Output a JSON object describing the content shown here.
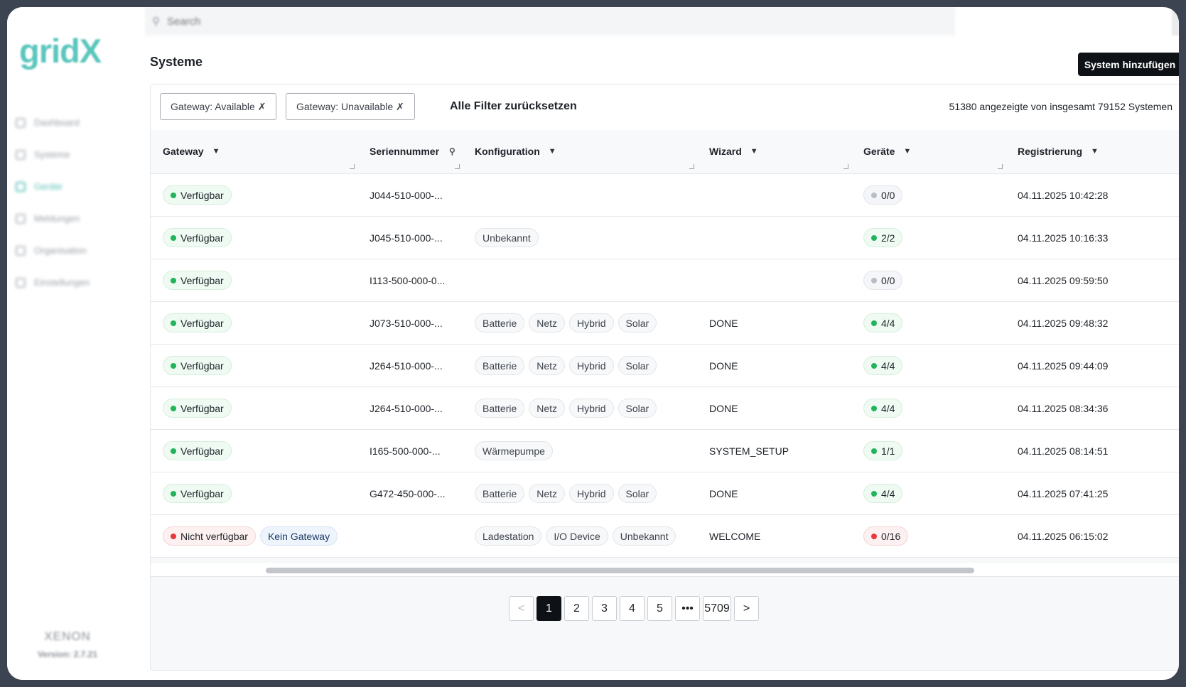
{
  "app": {
    "logo_text": "gridX"
  },
  "search": {
    "placeholder": "Search",
    "icon": "search-icon"
  },
  "sidebar": {
    "items": [
      {
        "label": "Dashboard",
        "icon": "monitor-icon",
        "active": false
      },
      {
        "label": "Systeme",
        "icon": "rocket-icon",
        "active": false
      },
      {
        "label": "Geräte",
        "icon": "device-icon",
        "active": true
      },
      {
        "label": "Meldungen",
        "icon": "calendar-icon",
        "active": false
      },
      {
        "label": "Organisation",
        "icon": "users-icon",
        "active": false
      },
      {
        "label": "Einstellungen",
        "icon": "gear-icon",
        "active": false
      }
    ],
    "brand_name": "XENON",
    "version": "Version: 2.7.21"
  },
  "page": {
    "title": "Systeme",
    "add_button": "System hinzufügen"
  },
  "filters": {
    "chips": [
      "Gateway: Available ✗",
      "Gateway: Unavailable ✗"
    ],
    "reset_label": "Alle Filter zurücksetzen",
    "count_text": "51380 angezeigte von insgesamt 79152 Systemen"
  },
  "table": {
    "headers": {
      "gateway": "Gateway",
      "serial": "Seriennummer",
      "config": "Konfiguration",
      "wizard": "Wizard",
      "devices": "Geräte",
      "registration": "Registrierung"
    },
    "rows": [
      {
        "gateway": [
          "Verfügbar"
        ],
        "serial": "J044-510-000-...",
        "config": [],
        "wizard": "",
        "devices": "0/0",
        "registration": "04.11.2025 10:42:28"
      },
      {
        "gateway": [
          "Verfügbar"
        ],
        "serial": "J045-510-000-...",
        "config": [
          "Unbekannt"
        ],
        "wizard": "",
        "devices": "2/2",
        "registration": "04.11.2025 10:16:33"
      },
      {
        "gateway": [
          "Verfügbar"
        ],
        "serial": "I113-500-000-0...",
        "config": [],
        "wizard": "",
        "devices": "0/0",
        "registration": "04.11.2025 09:59:50"
      },
      {
        "gateway": [
          "Verfügbar"
        ],
        "serial": "J073-510-000-...",
        "config": [
          "Batterie",
          "Netz",
          "Hybrid",
          "Solar"
        ],
        "wizard": "DONE",
        "devices": "4/4",
        "registration": "04.11.2025 09:48:32"
      },
      {
        "gateway": [
          "Verfügbar"
        ],
        "serial": "J264-510-000-...",
        "config": [
          "Batterie",
          "Netz",
          "Hybrid",
          "Solar"
        ],
        "wizard": "DONE",
        "devices": "4/4",
        "registration": "04.11.2025 09:44:09"
      },
      {
        "gateway": [
          "Verfügbar"
        ],
        "serial": "J264-510-000-...",
        "config": [
          "Batterie",
          "Netz",
          "Hybrid",
          "Solar"
        ],
        "wizard": "DONE",
        "devices": "4/4",
        "registration": "04.11.2025 08:34:36"
      },
      {
        "gateway": [
          "Verfügbar"
        ],
        "serial": "I165-500-000-...",
        "config": [
          "Wärmepumpe"
        ],
        "wizard": "SYSTEM_SETUP",
        "devices": "1/1",
        "registration": "04.11.2025 08:14:51"
      },
      {
        "gateway": [
          "Verfügbar"
        ],
        "serial": "G472-450-000-...",
        "config": [
          "Batterie",
          "Netz",
          "Hybrid",
          "Solar"
        ],
        "wizard": "DONE",
        "devices": "4/4",
        "registration": "04.11.2025 07:41:25"
      },
      {
        "gateway": [
          "Nicht verfügbar",
          "Kein Gateway"
        ],
        "serial": "",
        "config": [
          "Ladestation",
          "I/O Device",
          "Unbekannt"
        ],
        "wizard": "WELCOME",
        "devices": "0/16",
        "registration": "04.11.2025 06:15:02"
      }
    ],
    "device_status": [
      "neutral",
      "ok",
      "neutral",
      "ok",
      "ok",
      "ok",
      "ok",
      "ok",
      "error"
    ],
    "gateway_status": [
      [
        "ok"
      ],
      [
        "ok"
      ],
      [
        "ok"
      ],
      [
        "ok"
      ],
      [
        "ok"
      ],
      [
        "ok"
      ],
      [
        "ok"
      ],
      [
        "ok"
      ],
      [
        "error",
        "info"
      ]
    ]
  },
  "pagination": {
    "prev": "<",
    "pages": [
      "1",
      "2",
      "3",
      "4",
      "5",
      "•••",
      "5709"
    ],
    "current": "1",
    "next": ">"
  },
  "colors": {
    "accent": "#5bc6bd",
    "ok": "#22b45a",
    "error": "#e5383b",
    "primary_button": "#0e1116"
  }
}
